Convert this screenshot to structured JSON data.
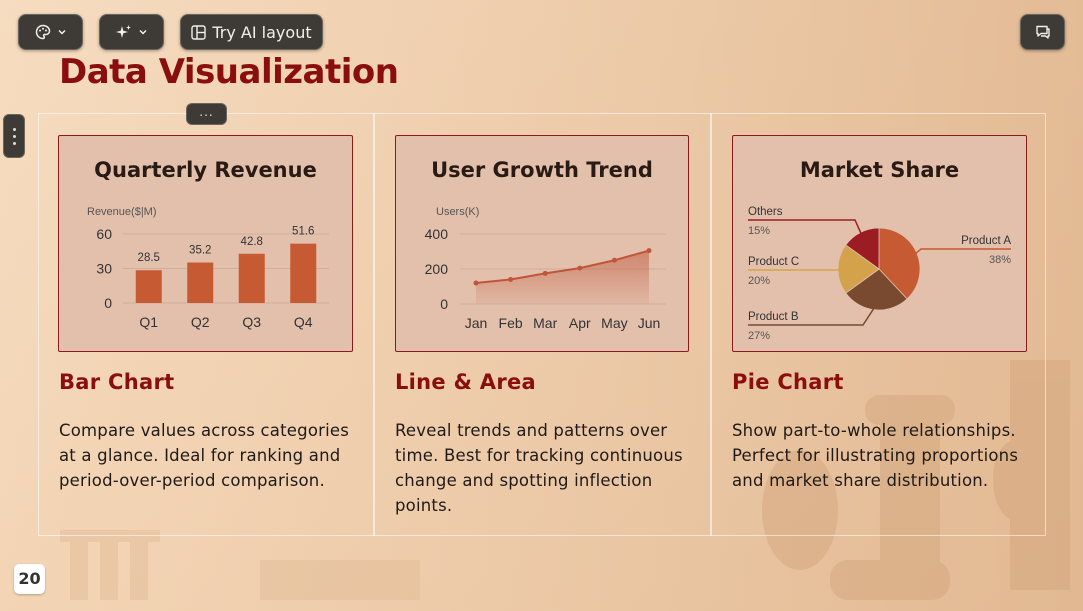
{
  "toolbar": {
    "ai_layout_label": "Try AI layout"
  },
  "slide": {
    "title": "Data Visualization",
    "page_number": "20"
  },
  "sections": [
    {
      "heading": "Bar Chart",
      "description": "Compare values across categories at a glance. Ideal for ranking and period-over-period comparison."
    },
    {
      "heading": "Line & Area",
      "description": "Reveal trends and patterns over time. Best for tracking continuous change and spotting inflection points."
    },
    {
      "heading": "Pie Chart",
      "description": "Show part-to-whole relationships. Perfect for illustrating proportions and market share distribution."
    }
  ],
  "colors": {
    "accent": "#8b0e0e",
    "bar": "#c55a33",
    "line": "#c0553a",
    "pie_a": "#c55a33",
    "pie_b": "#7a4a30",
    "pie_c": "#d4a24a",
    "pie_others": "#9b1c22"
  },
  "chart_data": [
    {
      "type": "bar",
      "title": "Quarterly Revenue",
      "ylabel": "Revenue($|M)",
      "categories": [
        "Q1",
        "Q2",
        "Q3",
        "Q4"
      ],
      "values": [
        28.5,
        35.2,
        42.8,
        51.6
      ],
      "value_labels": [
        "28.5",
        "35.2",
        "42.8",
        "51.6"
      ],
      "yticks": [
        "0",
        "30",
        "60"
      ],
      "ylim": [
        0,
        60
      ]
    },
    {
      "type": "area",
      "title": "User Growth Trend",
      "ylabel": "Users(K)",
      "categories": [
        "Jan",
        "Feb",
        "Mar",
        "Apr",
        "May",
        "Jun"
      ],
      "values": [
        120,
        140,
        175,
        205,
        250,
        305
      ],
      "yticks": [
        "0",
        "200",
        "400"
      ],
      "ylim": [
        0,
        400
      ]
    },
    {
      "type": "pie",
      "title": "Market Share",
      "slices": [
        {
          "label": "Product A",
          "value": 38,
          "pct": "38%"
        },
        {
          "label": "Product B",
          "value": 27,
          "pct": "27%"
        },
        {
          "label": "Product C",
          "value": 20,
          "pct": "20%"
        },
        {
          "label": "Others",
          "value": 15,
          "pct": "15%"
        }
      ]
    }
  ]
}
